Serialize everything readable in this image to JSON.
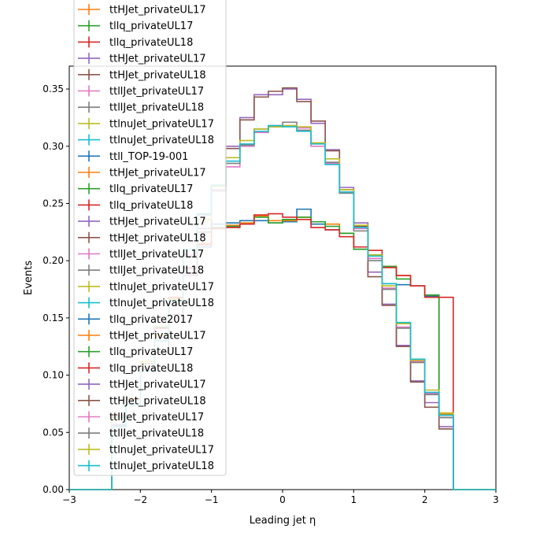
{
  "chart_data": {
    "type": "line",
    "xlabel": "Leading jet  η",
    "ylabel": "Events",
    "xlim": [
      -3,
      3
    ],
    "ylim": [
      0,
      0.37
    ],
    "x_ticks": [
      "−3",
      "−2",
      "−1",
      "0",
      "1",
      "2",
      "3"
    ],
    "y_ticks": [
      "0.00",
      "0.05",
      "0.10",
      "0.15",
      "0.20",
      "0.25",
      "0.30",
      "0.35"
    ],
    "bin_edges": [
      -2.4,
      -2.2,
      -2.0,
      -1.8,
      -1.6,
      -1.4,
      -1.2,
      -1.0,
      -0.8,
      -0.6,
      -0.4,
      -0.2,
      0.0,
      0.2,
      0.4,
      0.6,
      0.8,
      1.0,
      1.2,
      1.4,
      1.6,
      1.8,
      2.0,
      2.2,
      2.4
    ],
    "legend_position": "upper-left",
    "legend": [
      {
        "label": "ttHJet_privateUL17",
        "color": "#ff7f0e"
      },
      {
        "label": "tllq_privateUL17",
        "color": "#2ca02c"
      },
      {
        "label": "tllq_privateUL18",
        "color": "#d62728"
      },
      {
        "label": "ttHJet_privateUL17",
        "color": "#9467bd"
      },
      {
        "label": "ttHJet_privateUL18",
        "color": "#8c564b"
      },
      {
        "label": "ttllJet_privateUL17",
        "color": "#e377c2"
      },
      {
        "label": "ttllJet_privateUL18",
        "color": "#7f7f7f"
      },
      {
        "label": "ttlnuJet_privateUL17",
        "color": "#bcbd22"
      },
      {
        "label": "ttlnuJet_privateUL18",
        "color": "#17becf"
      },
      {
        "label": "ttll_TOP-19-001",
        "color": "#1f77b4"
      },
      {
        "label": "ttHJet_privateUL17",
        "color": "#ff7f0e"
      },
      {
        "label": "tllq_privateUL17",
        "color": "#2ca02c"
      },
      {
        "label": "tllq_privateUL18",
        "color": "#d62728"
      },
      {
        "label": "ttHJet_privateUL17",
        "color": "#9467bd"
      },
      {
        "label": "ttHJet_privateUL18",
        "color": "#8c564b"
      },
      {
        "label": "ttllJet_privateUL17",
        "color": "#e377c2"
      },
      {
        "label": "ttllJet_privateUL18",
        "color": "#7f7f7f"
      },
      {
        "label": "ttlnuJet_privateUL17",
        "color": "#bcbd22"
      },
      {
        "label": "ttlnuJet_privateUL18",
        "color": "#17becf"
      },
      {
        "label": "tllq_private2017",
        "color": "#1f77b4"
      },
      {
        "label": "ttHJet_privateUL17",
        "color": "#ff7f0e"
      },
      {
        "label": "tllq_privateUL17",
        "color": "#2ca02c"
      },
      {
        "label": "tllq_privateUL18",
        "color": "#d62728"
      },
      {
        "label": "ttHJet_privateUL17",
        "color": "#9467bd"
      },
      {
        "label": "ttHJet_privateUL18",
        "color": "#8c564b"
      },
      {
        "label": "ttllJet_privateUL17",
        "color": "#e377c2"
      },
      {
        "label": "ttllJet_privateUL18",
        "color": "#7f7f7f"
      },
      {
        "label": "ttlnuJet_privateUL17",
        "color": "#bcbd22"
      },
      {
        "label": "ttlnuJet_privateUL18",
        "color": "#17becf"
      }
    ],
    "series": [
      {
        "color": "#1f77b4",
        "values": [
          0.063,
          0.079,
          0.112,
          0.141,
          0.166,
          0.193,
          0.212,
          0.232,
          0.233,
          0.235,
          0.235,
          0.233,
          0.234,
          0.245,
          0.232,
          0.227,
          0.224,
          0.21,
          0.202,
          0.18,
          0.179,
          0.178,
          0.169,
          0.063
        ]
      },
      {
        "color": "#ff7f0e",
        "values": [
          0.065,
          0.079,
          0.112,
          0.142,
          0.167,
          0.194,
          0.215,
          0.228,
          0.231,
          0.233,
          0.239,
          0.235,
          0.235,
          0.238,
          0.234,
          0.232,
          0.224,
          0.21,
          0.205,
          0.195,
          0.187,
          0.178,
          0.17,
          0.066
        ]
      },
      {
        "color": "#2ca02c",
        "values": [
          0.064,
          0.079,
          0.112,
          0.142,
          0.166,
          0.194,
          0.214,
          0.229,
          0.23,
          0.232,
          0.238,
          0.233,
          0.236,
          0.238,
          0.234,
          0.23,
          0.224,
          0.21,
          0.205,
          0.195,
          0.184,
          0.178,
          0.17,
          0.065
        ]
      },
      {
        "color": "#d62728",
        "values": [
          0.065,
          0.079,
          0.112,
          0.141,
          0.168,
          0.194,
          0.214,
          0.228,
          0.229,
          0.232,
          0.24,
          0.241,
          0.238,
          0.236,
          0.229,
          0.227,
          0.221,
          0.212,
          0.209,
          0.194,
          0.187,
          0.178,
          0.168,
          0.168
        ]
      },
      {
        "color": "#9467bd",
        "values": [
          0.057,
          0.08,
          0.112,
          0.12,
          0.153,
          0.189,
          0.228,
          0.265,
          0.3,
          0.325,
          0.345,
          0.345,
          0.35,
          0.341,
          0.32,
          0.297,
          0.264,
          0.233,
          0.19,
          0.162,
          0.126,
          0.095,
          0.076,
          0.055
        ]
      },
      {
        "color": "#8c564b",
        "values": [
          0.055,
          0.08,
          0.11,
          0.12,
          0.153,
          0.187,
          0.225,
          0.265,
          0.298,
          0.323,
          0.343,
          0.348,
          0.351,
          0.339,
          0.322,
          0.296,
          0.262,
          0.23,
          0.186,
          0.161,
          0.125,
          0.094,
          0.072,
          0.053
        ]
      },
      {
        "color": "#e377c2",
        "values": [
          0.055,
          0.075,
          0.105,
          0.13,
          0.162,
          0.205,
          0.24,
          0.262,
          0.282,
          0.3,
          0.312,
          0.318,
          0.318,
          0.316,
          0.3,
          0.285,
          0.26,
          0.228,
          0.202,
          0.176,
          0.142,
          0.112,
          0.084,
          0.063
        ]
      },
      {
        "color": "#7f7f7f",
        "values": [
          0.056,
          0.075,
          0.106,
          0.13,
          0.162,
          0.204,
          0.24,
          0.261,
          0.285,
          0.301,
          0.315,
          0.317,
          0.321,
          0.314,
          0.302,
          0.286,
          0.259,
          0.226,
          0.2,
          0.175,
          0.141,
          0.111,
          0.083,
          0.063
        ]
      },
      {
        "color": "#bcbd22",
        "values": [
          0.062,
          0.08,
          0.112,
          0.135,
          0.166,
          0.21,
          0.236,
          0.265,
          0.29,
          0.305,
          0.315,
          0.317,
          0.318,
          0.317,
          0.303,
          0.289,
          0.262,
          0.231,
          0.205,
          0.178,
          0.145,
          0.113,
          0.087,
          0.067
        ]
      },
      {
        "color": "#17becf",
        "values": [
          0.055,
          0.074,
          0.104,
          0.13,
          0.165,
          0.21,
          0.241,
          0.266,
          0.287,
          0.302,
          0.313,
          0.318,
          0.317,
          0.313,
          0.302,
          0.284,
          0.26,
          0.229,
          0.204,
          0.18,
          0.146,
          0.114,
          0.085,
          0.065
        ]
      }
    ]
  }
}
